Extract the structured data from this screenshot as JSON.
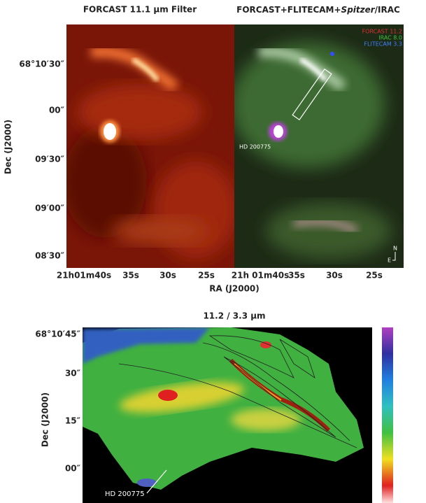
{
  "top_panel": {
    "left_title": "FORCAST 11.1 µm Filter",
    "right_title": {
      "prefix": "FORCAST+FLITECAM+",
      "italic": "Spitzer",
      "suffix": "/IRAC"
    },
    "legend": [
      "FORCAST 11.2",
      "IRAC 8.0",
      "FLITECAM 3.3"
    ],
    "star_label": "HD 200775",
    "compass": {
      "north": "N",
      "east": "E"
    },
    "y_label": "Dec (J2000)",
    "y_ticks": [
      "68°10′30″",
      "00″",
      "09′30″",
      "09′00″",
      "08′30″"
    ],
    "x_ticks_left": [
      "21h01m40s",
      "35s",
      "30s",
      "25s"
    ],
    "x_ticks_right": [
      "21h 01m40s",
      "35s",
      "30s",
      "25s"
    ],
    "x_label": "RA (J2000)"
  },
  "bottom_panel": {
    "title": "11.2 / 3.3 µm",
    "y_label": "Dec (J2000)",
    "y_ticks": [
      "68°10′45″",
      "30″",
      "15″",
      "00″"
    ],
    "star_label": "HD 200775"
  }
}
